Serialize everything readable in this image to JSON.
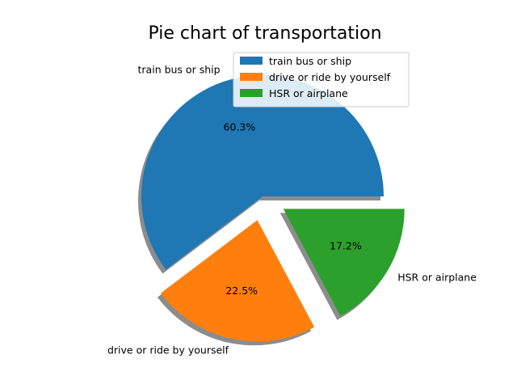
{
  "chart_data": {
    "type": "pie",
    "title": "Pie chart of transportation",
    "categories": [
      "train bus or ship",
      "drive or ride by yourself",
      "HSR or airplane"
    ],
    "values": [
      60.3,
      22.5,
      17.2
    ],
    "percent_labels": [
      "60.3%",
      "22.5%",
      "17.2%"
    ],
    "colors": [
      "#1f77b4",
      "#ff7f0e",
      "#2ca02c"
    ],
    "explode": [
      0,
      0.2,
      0.2
    ],
    "shadow": true,
    "start_angle_deg": 0,
    "legend": {
      "placement": "upper-right",
      "entries": [
        "train bus or ship",
        "drive or ride by yourself",
        "HSR or airplane"
      ]
    }
  }
}
